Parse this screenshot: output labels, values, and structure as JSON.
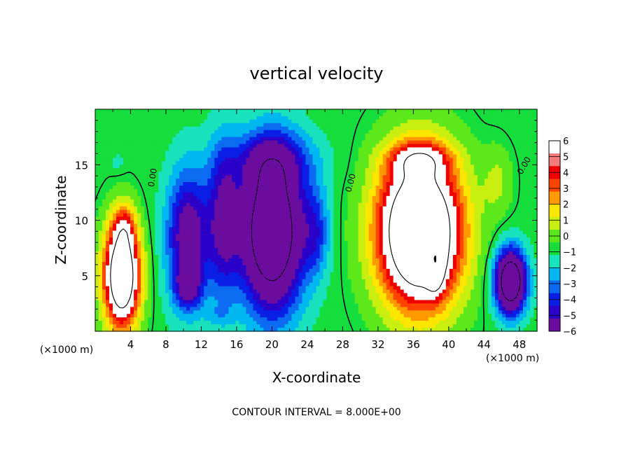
{
  "chart_data": {
    "type": "heatmap",
    "title": "vertical velocity",
    "xlabel": "X-coordinate",
    "ylabel": "Z-coordinate",
    "x_unit": "(×1000 m)",
    "z_unit": "(×1000 m)",
    "xlim": [
      0,
      50
    ],
    "ylim": [
      0,
      20
    ],
    "x_ticks": [
      4,
      8,
      12,
      16,
      20,
      24,
      28,
      32,
      36,
      40,
      44,
      48
    ],
    "y_ticks": [
      5,
      10,
      15
    ],
    "contour_interval_label": "CONTOUR INTERVAL = 8.000E+00",
    "zero_contour_label": "0.00",
    "colorbar": {
      "range": [
        -6,
        6
      ],
      "ticks": [
        6,
        5,
        4,
        3,
        2,
        1,
        0,
        -1,
        -2,
        -3,
        -4,
        -5,
        -6
      ],
      "tick_labels": [
        "6",
        "5",
        "4",
        "3",
        "2",
        "1",
        "0",
        "−1",
        "−2",
        "−3",
        "−4",
        "−5",
        "−6"
      ],
      "colors": [
        "#6a0d9e",
        "#2b00c8",
        "#0a1fe6",
        "#0b6cf2",
        "#00b7f0",
        "#18e3bd",
        "#15dd3c",
        "#5de81b",
        "#c8ef10",
        "#ffe600",
        "#ff9900",
        "#ff4400",
        "#ee0000",
        "#f57a7a",
        "#ffffff"
      ],
      "above_max": "#ffffff"
    },
    "background_value": 0,
    "features": [
      {
        "kind": "updraft",
        "x": 3,
        "z": 5,
        "sx": 2.0,
        "sz": 4.6,
        "amp": 12
      },
      {
        "kind": "updraft",
        "x": 3.3,
        "z": 9.5,
        "sx": 1.2,
        "sz": 2.0,
        "amp": 3
      },
      {
        "kind": "updraft",
        "x": 36.7,
        "z": 9,
        "sx": 4.6,
        "sz": 6.6,
        "amp": 14
      },
      {
        "kind": "updraft",
        "x": 36.7,
        "z": 15.5,
        "sx": 3.4,
        "sz": 1.5,
        "amp": 4
      },
      {
        "kind": "updraft",
        "x": 38.5,
        "z": 6.0,
        "sx": 0.9,
        "sz": 2.2,
        "amp": 6
      },
      {
        "kind": "updraft",
        "x": 45.5,
        "z": 13.5,
        "sx": 1.6,
        "sz": 3.0,
        "amp": 1.5
      },
      {
        "kind": "downdraft",
        "x": 20,
        "z": 9,
        "sx": 3.5,
        "sz": 7.0,
        "amp": -12
      },
      {
        "kind": "downdraft",
        "x": 20,
        "z": 15.5,
        "sx": 5.0,
        "sz": 2.5,
        "amp": -3
      },
      {
        "kind": "downdraft",
        "x": 10.5,
        "z": 8.5,
        "sx": 2.4,
        "sz": 6.0,
        "amp": -6.5
      },
      {
        "kind": "downdraft",
        "x": 10.5,
        "z": 4.0,
        "sx": 1.4,
        "sz": 1.8,
        "amp": -4
      },
      {
        "kind": "downdraft",
        "x": 14.5,
        "z": 10,
        "sx": 1.8,
        "sz": 7.0,
        "amp": -5
      },
      {
        "kind": "downdraft",
        "x": 47,
        "z": 4.5,
        "sx": 1.7,
        "sz": 2.8,
        "amp": -12
      },
      {
        "kind": "downdraft",
        "x": 25,
        "z": 9,
        "sx": 1.5,
        "sz": 4.0,
        "amp": -3
      },
      {
        "kind": "downdraft",
        "x": 2.5,
        "z": 15.2,
        "sx": 0.8,
        "sz": 0.8,
        "amp": -1
      },
      {
        "kind": "downdraft",
        "x": 14,
        "z": 1.5,
        "sx": 1.5,
        "sz": 1.0,
        "amp": -1
      }
    ]
  }
}
